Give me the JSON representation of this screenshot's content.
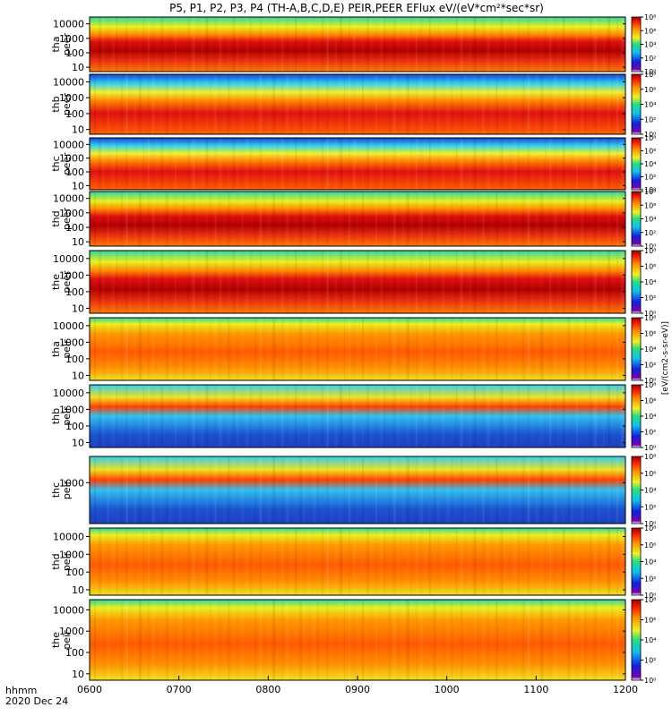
{
  "title": "P5, P1, P2, P3, P4 (TH-A,B,C,D,E) PEIR,PEER EFlux eV/(eV*cm²*sec*sr)",
  "chart_data": {
    "type": "heatmap",
    "date_label": "2020 Dec 24",
    "time_format_label": "hhmm",
    "x_ticks": [
      "0600",
      "0700",
      "0800",
      "0900",
      "1000",
      "1100",
      "1200"
    ],
    "xlim": [
      "0600",
      "1200"
    ],
    "colorbar_unit_label": "[eV/(cm2-s-sr-eV)]",
    "colorbar_ticks": [
      "10⁰",
      "10²",
      "10⁴",
      "10⁶",
      "10⁸"
    ],
    "colorbar_range": [
      1,
      100000000
    ],
    "panels": [
      {
        "probe": "tha",
        "species": "peer",
        "yticks": [
          "10",
          "100",
          "1000",
          "10000"
        ],
        "ylim": [
          5,
          30000
        ],
        "scale": "log"
      },
      {
        "probe": "thb",
        "species": "peer",
        "yticks": [
          "10",
          "100",
          "1000",
          "10000"
        ],
        "ylim": [
          5,
          30000
        ],
        "scale": "log"
      },
      {
        "probe": "thc",
        "species": "peer",
        "yticks": [
          "10",
          "100",
          "1000",
          "10000"
        ],
        "ylim": [
          5,
          30000
        ],
        "scale": "log"
      },
      {
        "probe": "thd",
        "species": "peer",
        "yticks": [
          "10",
          "100",
          "1000",
          "10000"
        ],
        "ylim": [
          5,
          30000
        ],
        "scale": "log"
      },
      {
        "probe": "the",
        "species": "peer",
        "yticks": [
          "10",
          "100",
          "1000",
          "10000"
        ],
        "ylim": [
          5,
          30000
        ],
        "scale": "log"
      },
      {
        "probe": "tha",
        "species": "peir",
        "yticks": [
          "10",
          "100",
          "1000",
          "10000"
        ],
        "ylim": [
          5,
          30000
        ],
        "scale": "log"
      },
      {
        "probe": "thb",
        "species": "peir",
        "yticks": [
          "10",
          "100",
          "1000",
          "10000"
        ],
        "ylim": [
          5,
          30000
        ],
        "scale": "log"
      },
      {
        "probe": "thc",
        "species": "peir",
        "yticks": [
          "1000"
        ],
        "ylim": [
          5,
          30000
        ],
        "scale": "log"
      },
      {
        "probe": "thd",
        "species": "peir",
        "yticks": [
          "10",
          "100",
          "1000",
          "10000"
        ],
        "ylim": [
          5,
          30000
        ],
        "scale": "log"
      },
      {
        "probe": "the",
        "species": "peir",
        "yticks": [
          "10",
          "100",
          "1000",
          "10000"
        ],
        "ylim": [
          5,
          30000
        ],
        "scale": "log"
      }
    ]
  }
}
